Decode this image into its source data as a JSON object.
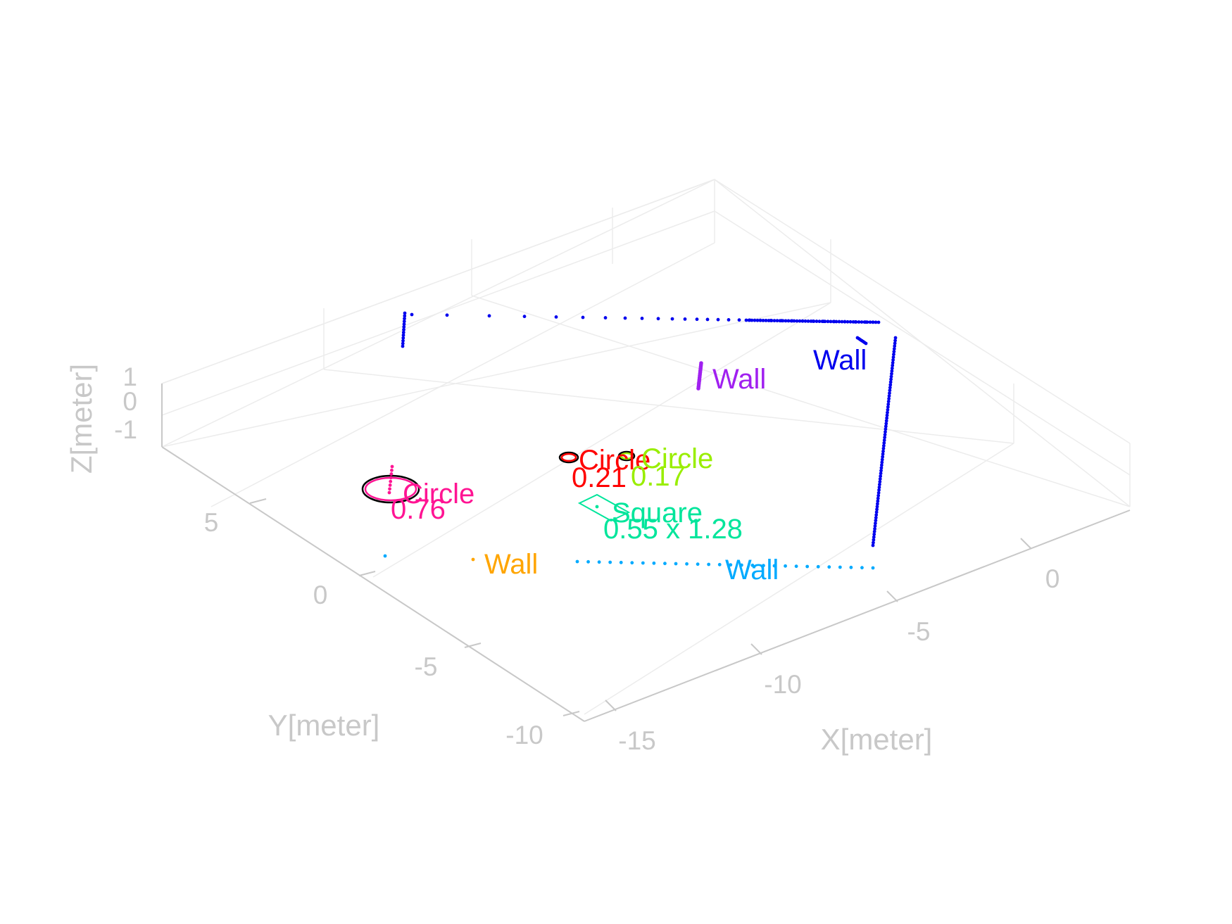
{
  "chart_data": {
    "type": "scatter",
    "title": "",
    "xlabel": "X[meter]",
    "ylabel": "Y[meter]",
    "zlabel": "Z[meter]",
    "xlim": [
      -17,
      3
    ],
    "ylim": [
      -10,
      9
    ],
    "zlim": [
      -1,
      1
    ],
    "x_ticks": [
      "-15",
      "-10",
      "-5",
      "0"
    ],
    "y_ticks": [
      "-10",
      "-5",
      "0",
      "5"
    ],
    "z_ticks": [
      "-1",
      "0",
      "1"
    ],
    "grid": true,
    "view": "3d",
    "objects": [
      {
        "kind": "Wall",
        "label": "Wall",
        "color": "#0000ee"
      },
      {
        "kind": "Wall",
        "label": "Wall",
        "color": "#a020f0"
      },
      {
        "kind": "Wall",
        "label": "Wall",
        "color": "#ffa500"
      },
      {
        "kind": "Wall",
        "label": "Wall",
        "color": "#00aaff"
      },
      {
        "kind": "Circle",
        "label": "Circle",
        "size": "0.76",
        "color": "#ff1493"
      },
      {
        "kind": "Circle",
        "label": "Circle",
        "size": "0.21",
        "color": "#ff0000"
      },
      {
        "kind": "Circle",
        "label": "Circle",
        "size": "0.17",
        "color": "#99ee00"
      },
      {
        "kind": "Square",
        "label": "Square",
        "size": "0.55 x 1.28",
        "color": "#00e59b"
      }
    ]
  }
}
